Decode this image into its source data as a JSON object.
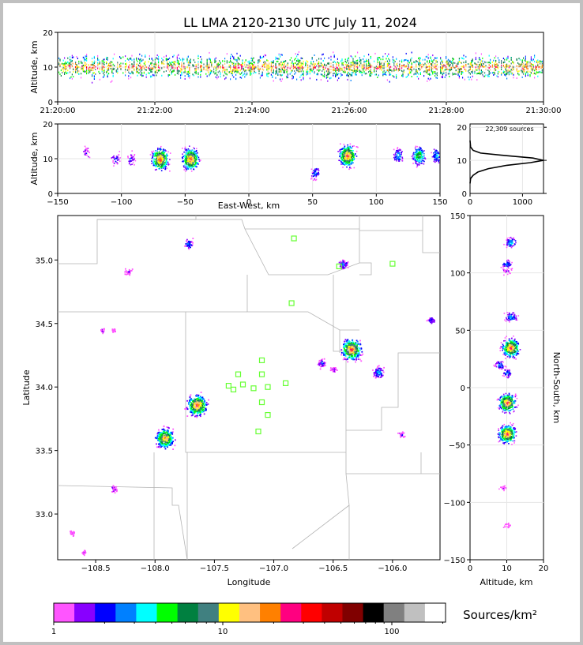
{
  "title": "LL LMA 2120-2130 UTC July 11, 2024",
  "colors": {
    "frame": "#c0c0c0",
    "county_lines": "#b4b4b4",
    "station_marker": "#66ff33",
    "density_palette": [
      "#ff55ff",
      "#8800ff",
      "#0000ff",
      "#0080ff",
      "#00ffff",
      "#00ff00",
      "#008040",
      "#408080",
      "#ffff00",
      "#ffc080",
      "#ff8000",
      "#ff0080",
      "#ff0000",
      "#c00000",
      "#800000",
      "#000000",
      "#808080",
      "#c0c0c0",
      "#ffffff"
    ]
  },
  "chart_data": [
    {
      "id": "time_height",
      "type": "scatter",
      "xlabel": "",
      "ylabel": "Altitude, km",
      "xticks": [
        "21:20:00",
        "21:22:00",
        "21:24:00",
        "21:26:00",
        "21:28:00",
        "21:30:00"
      ],
      "xlim": [
        "21:20:00",
        "21:30:00"
      ],
      "yticks": [
        0,
        10,
        20
      ],
      "ylim": [
        0,
        20
      ],
      "altitude_core_km": [
        7,
        13
      ],
      "grid": true
    },
    {
      "id": "ew_altitude",
      "type": "heatmap",
      "xlabel": "East-West, km",
      "ylabel": "Altitude, km",
      "xticks": [
        -150,
        -100,
        -50,
        0,
        50,
        100,
        150
      ],
      "xlim": [
        -150,
        150
      ],
      "yticks": [
        0,
        10,
        20
      ],
      "ylim": [
        0,
        20
      ],
      "grid": true,
      "cells": [
        {
          "x": -128,
          "z": 12,
          "n": 2
        },
        {
          "x": -105,
          "z": 10,
          "n": 3
        },
        {
          "x": -93,
          "z": 10,
          "n": 3
        },
        {
          "x": -70,
          "z": 10,
          "n": 12
        },
        {
          "x": -46,
          "z": 10,
          "n": 12
        },
        {
          "x": 52,
          "z": 6,
          "n": 4
        },
        {
          "x": 77,
          "z": 11,
          "n": 12
        },
        {
          "x": 117,
          "z": 11,
          "n": 5
        },
        {
          "x": 133,
          "z": 11,
          "n": 8
        },
        {
          "x": 147,
          "z": 11,
          "n": 5
        }
      ]
    },
    {
      "id": "altitude_histogram",
      "type": "line",
      "annotation": "22,309 sources",
      "xticks": [
        0,
        1000
      ],
      "xlim": [
        0,
        1400
      ],
      "yticks": [
        0,
        10,
        20
      ],
      "ylim": [
        0,
        21
      ],
      "points": [
        [
          0,
          3
        ],
        [
          10,
          4.5
        ],
        [
          60,
          5.5
        ],
        [
          150,
          6.5
        ],
        [
          350,
          7.5
        ],
        [
          700,
          8.5
        ],
        [
          1150,
          9.3
        ],
        [
          1400,
          10
        ],
        [
          1200,
          10.7
        ],
        [
          700,
          11.4
        ],
        [
          200,
          12.2
        ],
        [
          60,
          13
        ],
        [
          10,
          14
        ],
        [
          0,
          16
        ]
      ]
    },
    {
      "id": "plan_view",
      "type": "heatmap",
      "xlabel": "Longitude",
      "ylabel": "Latitude",
      "xticks": [
        -108.5,
        -108.0,
        -107.5,
        -107.0,
        -106.5,
        -106.0
      ],
      "xlim": [
        -108.82,
        -105.6
      ],
      "yticks": [
        33.0,
        33.5,
        34.0,
        34.5,
        35.0
      ],
      "ylim": [
        32.64,
        35.35
      ],
      "stations": [
        [
          -106.83,
          35.17
        ],
        [
          -106.0,
          34.97
        ],
        [
          -106.45,
          34.95
        ],
        [
          -106.85,
          34.66
        ],
        [
          -107.1,
          34.21
        ],
        [
          -107.3,
          34.1
        ],
        [
          -107.1,
          34.1
        ],
        [
          -107.38,
          34.01
        ],
        [
          -107.26,
          34.02
        ],
        [
          -107.34,
          33.98
        ],
        [
          -107.17,
          33.99
        ],
        [
          -107.05,
          34.0
        ],
        [
          -106.9,
          34.03
        ],
        [
          -107.1,
          33.88
        ],
        [
          -107.05,
          33.78
        ],
        [
          -107.13,
          33.65
        ]
      ],
      "cells": [
        {
          "lon": -107.72,
          "lat": 35.13,
          "n": 4
        },
        {
          "lon": -108.23,
          "lat": 34.91,
          "n": 2
        },
        {
          "lon": -106.42,
          "lat": 34.97,
          "n": 4
        },
        {
          "lon": -106.35,
          "lat": 34.3,
          "n": 12
        },
        {
          "lon": -106.6,
          "lat": 34.19,
          "n": 3
        },
        {
          "lon": -106.5,
          "lat": 34.14,
          "n": 2
        },
        {
          "lon": -106.12,
          "lat": 34.12,
          "n": 5
        },
        {
          "lon": -105.68,
          "lat": 34.53,
          "n": 3
        },
        {
          "lon": -107.65,
          "lat": 33.86,
          "n": 12
        },
        {
          "lon": -107.92,
          "lat": 33.6,
          "n": 11
        },
        {
          "lon": -108.35,
          "lat": 33.2,
          "n": 2
        },
        {
          "lon": -105.93,
          "lat": 33.63,
          "n": 2
        },
        {
          "lon": -108.7,
          "lat": 32.85,
          "n": 1
        },
        {
          "lon": -108.6,
          "lat": 32.7,
          "n": 1
        },
        {
          "lon": -108.45,
          "lat": 34.45,
          "n": 1
        },
        {
          "lon": -108.35,
          "lat": 34.45,
          "n": 1
        }
      ]
    },
    {
      "id": "ns_altitude",
      "type": "heatmap",
      "xlabel": "Altitude, km",
      "ylabel": "North-South, km",
      "xticks": [
        0,
        10,
        20
      ],
      "xlim": [
        0,
        20
      ],
      "yticks": [
        150,
        100,
        50,
        0,
        -50,
        -100,
        -150
      ],
      "ylim": [
        -150,
        150
      ],
      "grid": true,
      "cells": [
        {
          "z": 11,
          "y": 127,
          "n": 5
        },
        {
          "z": 10,
          "y": 108,
          "n": 4
        },
        {
          "z": 10,
          "y": 102,
          "n": 2
        },
        {
          "z": 11,
          "y": 62,
          "n": 5
        },
        {
          "z": 11,
          "y": 35,
          "n": 12
        },
        {
          "z": 8,
          "y": 20,
          "n": 4
        },
        {
          "z": 10,
          "y": 13,
          "n": 4
        },
        {
          "z": 10,
          "y": -13,
          "n": 12
        },
        {
          "z": 10,
          "y": -40,
          "n": 12
        },
        {
          "z": 9,
          "y": -87,
          "n": 1
        },
        {
          "z": 10,
          "y": -120,
          "n": 1
        }
      ]
    },
    {
      "id": "colorbar",
      "type": "heatmap",
      "label": "Sources/km²",
      "ticks": [
        "1",
        "10",
        "100"
      ],
      "scale": "log"
    }
  ]
}
